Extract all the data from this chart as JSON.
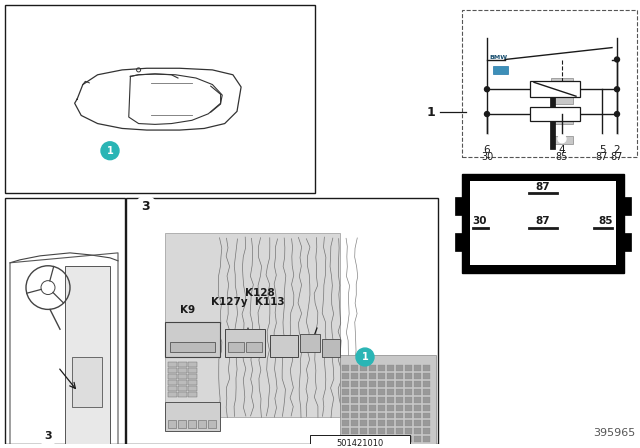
{
  "bg_color": "#f5f5f5",
  "dark": "#1a1a1a",
  "teal": "#2ab5b5",
  "blue_relay": "#5aaddb",
  "blue_relay_top": "#7dc8e8",
  "blue_relay_side": "#3d8fb8",
  "gray1": "#aaaaaa",
  "gray2": "#888888",
  "gray3": "#cccccc",
  "part_number": "395965",
  "sub_number": "501421010",
  "labels_K": [
    "K9",
    "K127y",
    "K113",
    "K128"
  ],
  "pin_row1": [
    "6",
    "4",
    "5",
    "2"
  ],
  "pin_row2": [
    "30",
    "85",
    "87",
    "87"
  ],
  "box_pin_labels": [
    "87",
    "30",
    "87",
    "85"
  ]
}
